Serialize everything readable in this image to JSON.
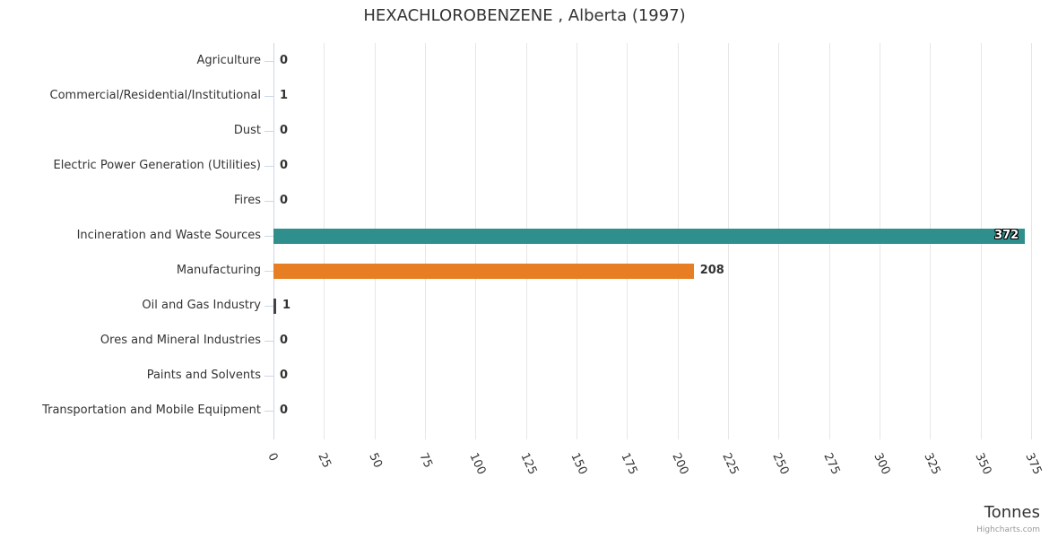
{
  "title": "HEXACHLOROBENZENE , Alberta (1997)",
  "xaxis_title": "Tonnes",
  "credits": "Highcharts.com",
  "colors": {
    "teal_bar": "#2e8f8c",
    "orange_bar": "#e77e23",
    "dark_bar": "#434348",
    "axis_line": "#ccd6eb",
    "gridline": "#e6e6e6",
    "text": "#333333",
    "credits_text": "#999999"
  },
  "chart_data": {
    "type": "bar",
    "title": "HEXACHLOROBENZENE , Alberta (1997)",
    "xlabel": "Tonnes",
    "ylabel": "",
    "categories": [
      "Agriculture",
      "Commercial/Residential/Institutional",
      "Dust",
      "Electric Power Generation (Utilities)",
      "Fires",
      "Incineration and Waste Sources",
      "Manufacturing",
      "Oil and Gas Industry",
      "Ores and Mineral Industries",
      "Paints and Solvents",
      "Transportation and Mobile Equipment"
    ],
    "values": [
      0,
      1,
      0,
      0,
      0,
      372,
      208,
      1,
      0,
      0,
      0
    ],
    "data_labels": [
      "0",
      "1",
      "0",
      "0",
      "0",
      "372",
      "208",
      "1",
      "0",
      "0",
      "0"
    ],
    "bar_colors": [
      null,
      null,
      null,
      null,
      null,
      "#2e8f8c",
      "#e77e23",
      "#434348",
      null,
      null,
      null
    ],
    "label_inside": [
      false,
      false,
      false,
      false,
      false,
      true,
      false,
      false,
      false,
      false,
      false
    ],
    "axis": {
      "min": 0,
      "max": 375,
      "tick_interval": 25,
      "tick_labels": [
        "0",
        "25",
        "50",
        "75",
        "100",
        "125",
        "150",
        "175",
        "200",
        "225",
        "250",
        "275",
        "300",
        "325",
        "350",
        "375"
      ]
    },
    "legend": "none",
    "grid": true
  }
}
